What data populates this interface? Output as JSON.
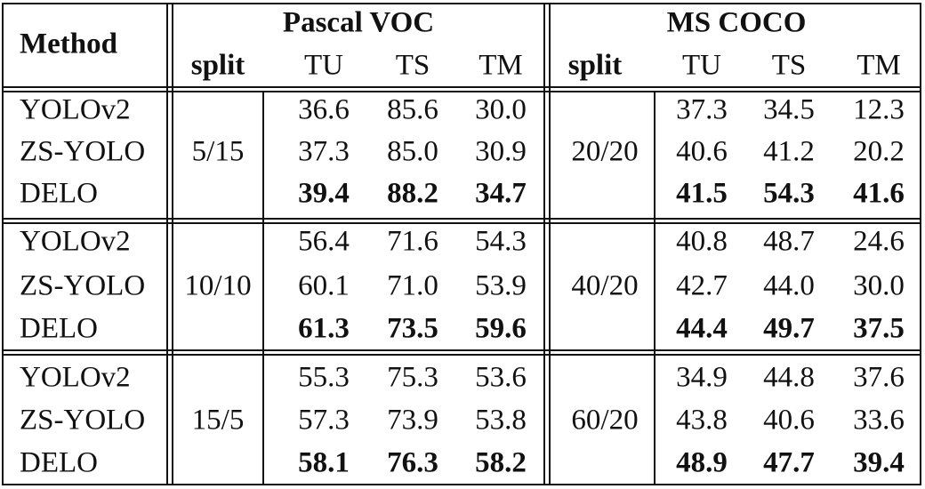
{
  "header": {
    "method": "Method",
    "groups": [
      {
        "title": "Pascal VOC",
        "cols": [
          "split",
          "TU",
          "TS",
          "TM"
        ]
      },
      {
        "title": "MS COCO",
        "cols": [
          "split",
          "TU",
          "TS",
          "TM"
        ]
      }
    ]
  },
  "blocks": [
    {
      "voc_split": "5/15",
      "coco_split": "20/20",
      "rows": [
        {
          "method": "YOLOv2",
          "voc": [
            "36.6",
            "85.6",
            "30.0"
          ],
          "coco": [
            "37.3",
            "34.5",
            "12.3"
          ],
          "bold": false
        },
        {
          "method": "ZS-YOLO",
          "voc": [
            "37.3",
            "85.0",
            "30.9"
          ],
          "coco": [
            "40.6",
            "41.2",
            "20.2"
          ],
          "bold": false
        },
        {
          "method": "DELO",
          "voc": [
            "39.4",
            "88.2",
            "34.7"
          ],
          "coco": [
            "41.5",
            "54.3",
            "41.6"
          ],
          "bold": true
        }
      ]
    },
    {
      "voc_split": "10/10",
      "coco_split": "40/20",
      "rows": [
        {
          "method": "YOLOv2",
          "voc": [
            "56.4",
            "71.6",
            "54.3"
          ],
          "coco": [
            "40.8",
            "48.7",
            "24.6"
          ],
          "bold": false
        },
        {
          "method": "ZS-YOLO",
          "voc": [
            "60.1",
            "71.0",
            "53.9"
          ],
          "coco": [
            "42.7",
            "44.0",
            "30.0"
          ],
          "bold": false
        },
        {
          "method": "DELO",
          "voc": [
            "61.3",
            "73.5",
            "59.6"
          ],
          "coco": [
            "44.4",
            "49.7",
            "37.5"
          ],
          "bold": true
        }
      ]
    },
    {
      "voc_split": "15/5",
      "coco_split": "60/20",
      "rows": [
        {
          "method": "YOLOv2",
          "voc": [
            "55.3",
            "75.3",
            "53.6"
          ],
          "coco": [
            "34.9",
            "44.8",
            "37.6"
          ],
          "bold": false
        },
        {
          "method": "ZS-YOLO",
          "voc": [
            "57.3",
            "73.9",
            "53.8"
          ],
          "coco": [
            "43.8",
            "40.6",
            "33.6"
          ],
          "bold": false
        },
        {
          "method": "DELO",
          "voc": [
            "58.1",
            "76.3",
            "58.2"
          ],
          "coco": [
            "48.9",
            "47.7",
            "39.4"
          ],
          "bold": true
        }
      ]
    }
  ]
}
